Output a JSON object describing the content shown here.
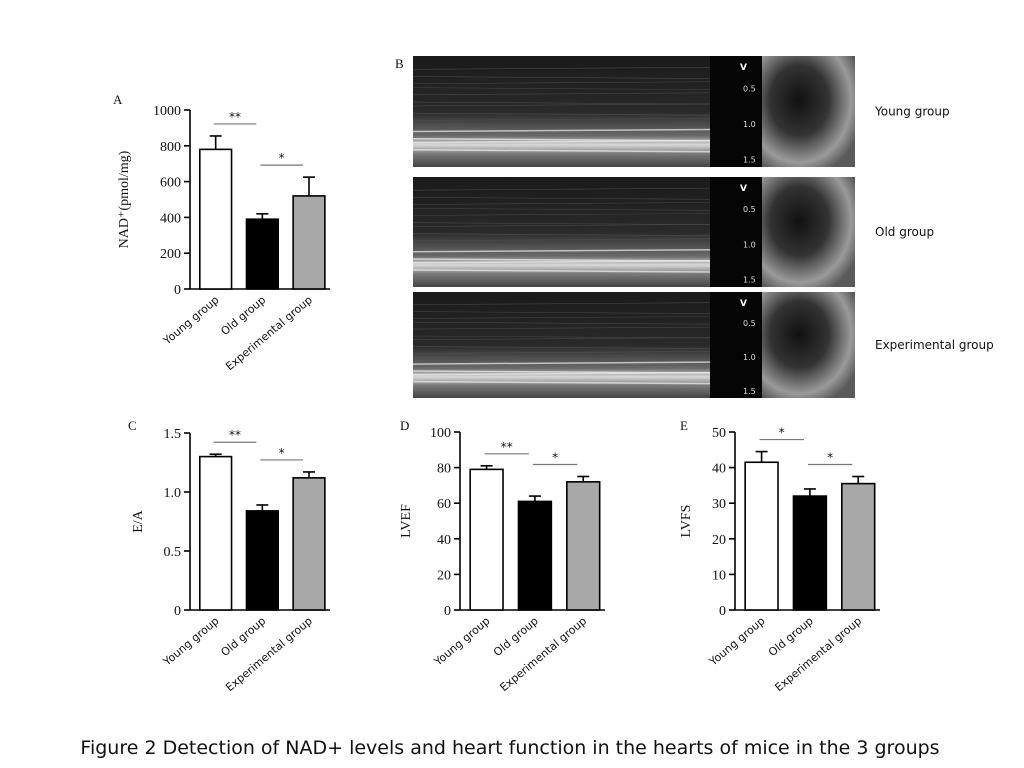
{
  "chart_data": [
    {
      "type": "bar",
      "panel": "A",
      "y_label": "NAD⁺(pmol/mg)",
      "categories": [
        "Young group",
        "Old group",
        "Experimental group"
      ],
      "values": [
        780,
        390,
        520
      ],
      "errors": [
        75,
        30,
        105
      ],
      "colors": [
        "#ffffff",
        "#000000",
        "#a8a8a8"
      ],
      "ylim": [
        0,
        1000
      ],
      "yticks": [
        0,
        200,
        400,
        600,
        800,
        1000
      ],
      "significance_labels": [
        "**",
        "*"
      ]
    },
    {
      "type": "bar",
      "panel": "C",
      "y_label": "E/A",
      "categories": [
        "Young group",
        "Old group",
        "Experimental group"
      ],
      "values": [
        1.3,
        0.84,
        1.12
      ],
      "errors": [
        0.02,
        0.05,
        0.05
      ],
      "colors": [
        "#ffffff",
        "#000000",
        "#a8a8a8"
      ],
      "ylim": [
        0,
        1.5
      ],
      "yticks": [
        0,
        0.5,
        {
          "value": 1,
          "label": "1.0"
        },
        1.5
      ],
      "significance_labels": [
        "**",
        "*"
      ]
    },
    {
      "type": "bar",
      "panel": "D",
      "y_label": "LVEF",
      "categories": [
        "Young group",
        "Old group",
        "Experimental group"
      ],
      "values": [
        79,
        61,
        72
      ],
      "errors": [
        2,
        3,
        3
      ],
      "colors": [
        "#ffffff",
        "#000000",
        "#a8a8a8"
      ],
      "ylim": [
        0,
        100
      ],
      "yticks": [
        0,
        20,
        40,
        60,
        80,
        100
      ],
      "significance_labels": [
        "**",
        "*"
      ]
    },
    {
      "type": "bar",
      "panel": "E",
      "y_label": "LVFS",
      "categories": [
        "Young group",
        "Old group",
        "Experimental group"
      ],
      "values": [
        41.5,
        32,
        35.5
      ],
      "errors": [
        3,
        2,
        2
      ],
      "colors": [
        "#ffffff",
        "#000000",
        "#a8a8a8"
      ],
      "ylim": [
        0,
        50
      ],
      "yticks": [
        0,
        10,
        20,
        30,
        40,
        50
      ],
      "significance_labels": [
        "*",
        "*"
      ]
    }
  ],
  "panel_b": {
    "label": "B",
    "scale_labels": [
      "V",
      "0.5",
      "1.0",
      "1.5"
    ],
    "rows": [
      "Young group",
      "Old group",
      "Experimental group"
    ]
  },
  "caption": "Figure 2   Detection of NAD+ levels and heart function in the hearts of mice in the 3 groups"
}
